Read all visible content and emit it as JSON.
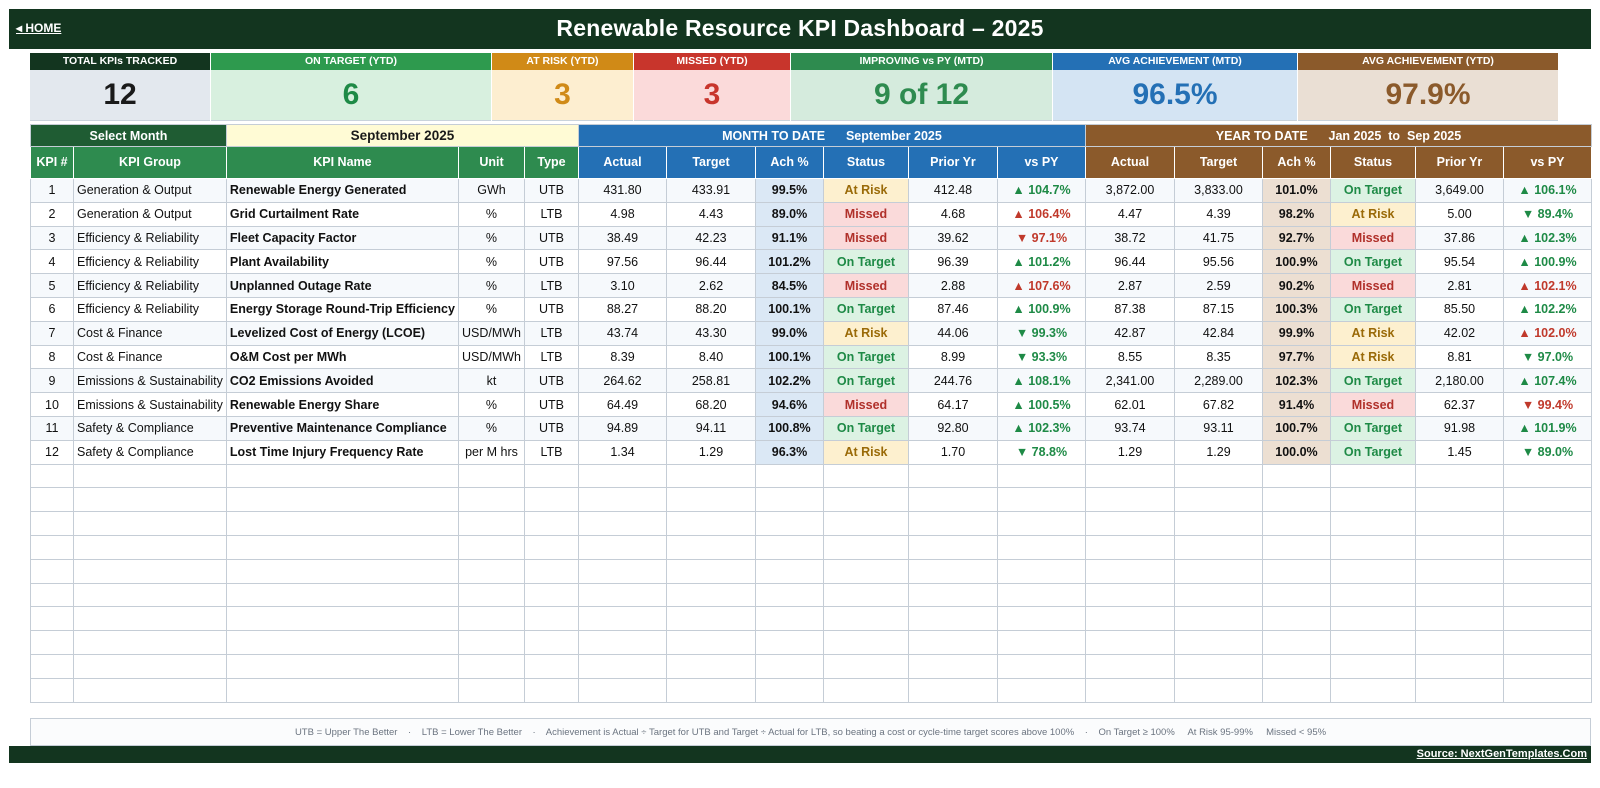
{
  "header": {
    "home_label": "◂ HOME",
    "title": "Renewable Resource KPI Dashboard   –   2025"
  },
  "cards": [
    {
      "label": "TOTAL KPIs TRACKED",
      "value": "12",
      "label_bg": "#13351f",
      "value_bg": "#e3e8ee",
      "value_color": "#1a1a1a"
    },
    {
      "label": "ON TARGET (YTD)",
      "value": "6",
      "label_bg": "#2e9a4e",
      "value_bg": "#d8f0df",
      "value_color": "#1e8a46"
    },
    {
      "label": "AT RISK (YTD)",
      "value": "3",
      "label_bg": "#d08a17",
      "value_bg": "#fdeed0",
      "value_color": "#d08a17"
    },
    {
      "label": "MISSED (YTD)",
      "value": "3",
      "label_bg": "#c8352c",
      "value_bg": "#fbdada",
      "value_color": "#c8352c"
    },
    {
      "label": "IMPROVING vs PY (MTD)",
      "value": "9 of 12",
      "label_bg": "#2e8b4f",
      "value_bg": "#d5ebdd",
      "value_color": "#2e8b4f"
    },
    {
      "label": "AVG ACHIEVEMENT (MTD)",
      "value": "96.5%",
      "label_bg": "#2470b5",
      "value_bg": "#d4e4f3",
      "value_color": "#2470b5"
    },
    {
      "label": "AVG ACHIEVEMENT (YTD)",
      "value": "97.9%",
      "label_bg": "#8b5a2b",
      "value_bg": "#eadfd4",
      "value_color": "#8b5a2b"
    }
  ],
  "selector": {
    "label": "Select Month",
    "value": "September 2025",
    "mtd_band": "MONTH TO DATE      September 2025",
    "ytd_band": "YEAR TO DATE      Jan 2025  to  Sep 2025"
  },
  "columns": [
    "KPI #",
    "KPI Group",
    "KPI Name",
    "Unit",
    "Type",
    "Actual",
    "Target",
    "Ach %",
    "Status",
    "Prior Yr",
    "vs PY",
    "Actual",
    "Target",
    "Ach %",
    "Status",
    "Prior Yr",
    "vs PY"
  ],
  "rows": [
    {
      "n": "1",
      "group": "Generation & Output",
      "name": "Renewable Energy Generated",
      "unit": "GWh",
      "type": "UTB",
      "m_actual": "431.80",
      "m_target": "433.91",
      "m_ach": "99.5%",
      "m_status": "At Risk",
      "m_prior": "412.48",
      "m_vspy": "▲ 104.7%",
      "m_vspy_tone": "good",
      "y_actual": "3,872.00",
      "y_target": "3,833.00",
      "y_ach": "101.0%",
      "y_status": "On Target",
      "y_prior": "3,649.00",
      "y_vspy": "▲ 106.1%",
      "y_vspy_tone": "good"
    },
    {
      "n": "2",
      "group": "Generation & Output",
      "name": "Grid Curtailment Rate",
      "unit": "%",
      "type": "LTB",
      "m_actual": "4.98",
      "m_target": "4.43",
      "m_ach": "89.0%",
      "m_status": "Missed",
      "m_prior": "4.68",
      "m_vspy": "▲ 106.4%",
      "m_vspy_tone": "bad",
      "y_actual": "4.47",
      "y_target": "4.39",
      "y_ach": "98.2%",
      "y_status": "At Risk",
      "y_prior": "5.00",
      "y_vspy": "▼ 89.4%",
      "y_vspy_tone": "good"
    },
    {
      "n": "3",
      "group": "Efficiency & Reliability",
      "name": "Fleet Capacity Factor",
      "unit": "%",
      "type": "UTB",
      "m_actual": "38.49",
      "m_target": "42.23",
      "m_ach": "91.1%",
      "m_status": "Missed",
      "m_prior": "39.62",
      "m_vspy": "▼ 97.1%",
      "m_vspy_tone": "bad",
      "y_actual": "38.72",
      "y_target": "41.75",
      "y_ach": "92.7%",
      "y_status": "Missed",
      "y_prior": "37.86",
      "y_vspy": "▲ 102.3%",
      "y_vspy_tone": "good"
    },
    {
      "n": "4",
      "group": "Efficiency & Reliability",
      "name": "Plant Availability",
      "unit": "%",
      "type": "UTB",
      "m_actual": "97.56",
      "m_target": "96.44",
      "m_ach": "101.2%",
      "m_status": "On Target",
      "m_prior": "96.39",
      "m_vspy": "▲ 101.2%",
      "m_vspy_tone": "good",
      "y_actual": "96.44",
      "y_target": "95.56",
      "y_ach": "100.9%",
      "y_status": "On Target",
      "y_prior": "95.54",
      "y_vspy": "▲ 100.9%",
      "y_vspy_tone": "good"
    },
    {
      "n": "5",
      "group": "Efficiency & Reliability",
      "name": "Unplanned Outage Rate",
      "unit": "%",
      "type": "LTB",
      "m_actual": "3.10",
      "m_target": "2.62",
      "m_ach": "84.5%",
      "m_status": "Missed",
      "m_prior": "2.88",
      "m_vspy": "▲ 107.6%",
      "m_vspy_tone": "bad",
      "y_actual": "2.87",
      "y_target": "2.59",
      "y_ach": "90.2%",
      "y_status": "Missed",
      "y_prior": "2.81",
      "y_vspy": "▲ 102.1%",
      "y_vspy_tone": "bad"
    },
    {
      "n": "6",
      "group": "Efficiency & Reliability",
      "name": "Energy Storage Round-Trip Efficiency",
      "unit": "%",
      "type": "UTB",
      "m_actual": "88.27",
      "m_target": "88.20",
      "m_ach": "100.1%",
      "m_status": "On Target",
      "m_prior": "87.46",
      "m_vspy": "▲ 100.9%",
      "m_vspy_tone": "good",
      "y_actual": "87.38",
      "y_target": "87.15",
      "y_ach": "100.3%",
      "y_status": "On Target",
      "y_prior": "85.50",
      "y_vspy": "▲ 102.2%",
      "y_vspy_tone": "good"
    },
    {
      "n": "7",
      "group": "Cost & Finance",
      "name": "Levelized Cost of Energy (LCOE)",
      "unit": "USD/MWh",
      "type": "LTB",
      "m_actual": "43.74",
      "m_target": "43.30",
      "m_ach": "99.0%",
      "m_status": "At Risk",
      "m_prior": "44.06",
      "m_vspy": "▼ 99.3%",
      "m_vspy_tone": "good",
      "y_actual": "42.87",
      "y_target": "42.84",
      "y_ach": "99.9%",
      "y_status": "At Risk",
      "y_prior": "42.02",
      "y_vspy": "▲ 102.0%",
      "y_vspy_tone": "bad"
    },
    {
      "n": "8",
      "group": "Cost & Finance",
      "name": "O&M Cost per MWh",
      "unit": "USD/MWh",
      "type": "LTB",
      "m_actual": "8.39",
      "m_target": "8.40",
      "m_ach": "100.1%",
      "m_status": "On Target",
      "m_prior": "8.99",
      "m_vspy": "▼ 93.3%",
      "m_vspy_tone": "good",
      "y_actual": "8.55",
      "y_target": "8.35",
      "y_ach": "97.7%",
      "y_status": "At Risk",
      "y_prior": "8.81",
      "y_vspy": "▼ 97.0%",
      "y_vspy_tone": "good"
    },
    {
      "n": "9",
      "group": "Emissions & Sustainability",
      "name": "CO2 Emissions Avoided",
      "unit": "kt",
      "type": "UTB",
      "m_actual": "264.62",
      "m_target": "258.81",
      "m_ach": "102.2%",
      "m_status": "On Target",
      "m_prior": "244.76",
      "m_vspy": "▲ 108.1%",
      "m_vspy_tone": "good",
      "y_actual": "2,341.00",
      "y_target": "2,289.00",
      "y_ach": "102.3%",
      "y_status": "On Target",
      "y_prior": "2,180.00",
      "y_vspy": "▲ 107.4%",
      "y_vspy_tone": "good"
    },
    {
      "n": "10",
      "group": "Emissions & Sustainability",
      "name": "Renewable Energy Share",
      "unit": "%",
      "type": "UTB",
      "m_actual": "64.49",
      "m_target": "68.20",
      "m_ach": "94.6%",
      "m_status": "Missed",
      "m_prior": "64.17",
      "m_vspy": "▲ 100.5%",
      "m_vspy_tone": "good",
      "y_actual": "62.01",
      "y_target": "67.82",
      "y_ach": "91.4%",
      "y_status": "Missed",
      "y_prior": "62.37",
      "y_vspy": "▼ 99.4%",
      "y_vspy_tone": "bad"
    },
    {
      "n": "11",
      "group": "Safety & Compliance",
      "name": "Preventive Maintenance Compliance",
      "unit": "%",
      "type": "UTB",
      "m_actual": "94.89",
      "m_target": "94.11",
      "m_ach": "100.8%",
      "m_status": "On Target",
      "m_prior": "92.80",
      "m_vspy": "▲ 102.3%",
      "m_vspy_tone": "good",
      "y_actual": "93.74",
      "y_target": "93.11",
      "y_ach": "100.7%",
      "y_status": "On Target",
      "y_prior": "91.98",
      "y_vspy": "▲ 101.9%",
      "y_vspy_tone": "good"
    },
    {
      "n": "12",
      "group": "Safety & Compliance",
      "name": "Lost Time Injury Frequency Rate",
      "unit": "per M hrs",
      "type": "LTB",
      "m_actual": "1.34",
      "m_target": "1.29",
      "m_ach": "96.3%",
      "m_status": "At Risk",
      "m_prior": "1.70",
      "m_vspy": "▼ 78.8%",
      "m_vspy_tone": "good",
      "y_actual": "1.29",
      "y_target": "1.29",
      "y_ach": "100.0%",
      "y_status": "On Target",
      "y_prior": "1.45",
      "y_vspy": "▼ 89.0%",
      "y_vspy_tone": "good"
    }
  ],
  "legend": "UTB = Upper The Better    ·    LTB = Lower The Better    ·    Achievement is Actual ÷ Target for UTB and Target ÷ Actual for LTB, so beating a cost or cycle-time target scores above 100%    ·    On Target ≥ 100%     At Risk 95-99%     Missed < 95%",
  "footer": {
    "source": "Source: NextGenTemplates.Com"
  }
}
